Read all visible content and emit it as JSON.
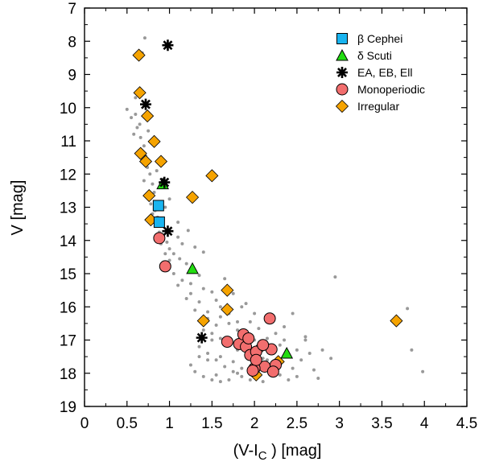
{
  "chart_data": {
    "type": "scatter",
    "xlabel": "(V-I",
    "xlabel_sub": "C",
    "xlabel_tail": " ) [mag]",
    "ylabel": "V [mag]",
    "xlim": [
      0,
      4.5
    ],
    "ylim": [
      7,
      19
    ],
    "y_inverted": true,
    "grid": false,
    "legend_position": "top-right",
    "xticks": [
      "0",
      "0.5",
      "1",
      "1.5",
      "2",
      "2.5",
      "3",
      "3.5",
      "4",
      "4.5"
    ],
    "yticks": [
      "7",
      "8",
      "9",
      "10",
      "11",
      "12",
      "13",
      "14",
      "15",
      "16",
      "17",
      "18",
      "19"
    ],
    "background": {
      "color": "#999999",
      "points": [
        [
          0.71,
          7.9
        ],
        [
          0.5,
          10.05
        ],
        [
          0.55,
          10.3
        ],
        [
          0.6,
          9.7
        ],
        [
          0.62,
          10.6
        ],
        [
          0.66,
          10.9
        ],
        [
          0.7,
          11.15
        ],
        [
          0.72,
          11.45
        ],
        [
          0.74,
          11.8
        ],
        [
          0.77,
          12.0
        ],
        [
          0.8,
          12.3
        ],
        [
          0.82,
          12.55
        ],
        [
          0.78,
          12.9
        ],
        [
          0.83,
          13.1
        ],
        [
          0.86,
          13.3
        ],
        [
          0.9,
          13.55
        ],
        [
          0.93,
          13.85
        ],
        [
          0.97,
          14.05
        ],
        [
          1.0,
          14.25
        ],
        [
          1.05,
          14.4
        ],
        [
          1.12,
          14.55
        ],
        [
          1.2,
          14.7
        ],
        [
          1.3,
          14.9
        ],
        [
          1.35,
          15.05
        ],
        [
          1.25,
          15.3
        ],
        [
          1.4,
          15.45
        ],
        [
          1.5,
          15.55
        ],
        [
          1.55,
          15.8
        ],
        [
          1.6,
          16.0
        ],
        [
          1.45,
          16.15
        ],
        [
          1.6,
          16.3
        ],
        [
          1.7,
          16.5
        ],
        [
          1.8,
          16.7
        ],
        [
          1.9,
          16.85
        ],
        [
          2.0,
          17.0
        ],
        [
          1.35,
          17.2
        ],
        [
          1.45,
          17.4
        ],
        [
          1.55,
          17.6
        ],
        [
          1.65,
          17.8
        ],
        [
          1.75,
          17.95
        ],
        [
          1.85,
          18.1
        ],
        [
          1.95,
          18.2
        ],
        [
          2.1,
          18.25
        ],
        [
          2.2,
          18.0
        ],
        [
          2.3,
          17.7
        ],
        [
          2.4,
          17.5
        ],
        [
          2.5,
          17.3
        ],
        [
          2.6,
          17.0
        ],
        [
          2.7,
          17.9
        ],
        [
          2.75,
          18.15
        ],
        [
          1.3,
          17.95
        ],
        [
          1.4,
          18.1
        ],
        [
          1.5,
          18.2
        ],
        [
          1.6,
          18.25
        ],
        [
          1.7,
          18.2
        ],
        [
          1.8,
          18.0
        ],
        [
          2.0,
          17.75
        ],
        [
          2.1,
          17.55
        ],
        [
          2.2,
          17.35
        ],
        [
          2.3,
          17.15
        ],
        [
          2.35,
          16.6
        ],
        [
          2.45,
          16.2
        ],
        [
          2.6,
          16.9
        ],
        [
          2.8,
          17.3
        ],
        [
          2.9,
          17.55
        ],
        [
          2.95,
          15.1
        ],
        [
          3.8,
          16.05
        ],
        [
          3.85,
          17.3
        ],
        [
          3.98,
          17.95
        ],
        [
          1.1,
          13.9
        ],
        [
          1.15,
          14.1
        ],
        [
          1.22,
          13.7
        ],
        [
          1.3,
          14.2
        ],
        [
          1.4,
          14.35
        ],
        [
          1.1,
          13.45
        ],
        [
          0.95,
          13.0
        ],
        [
          1.0,
          12.75
        ],
        [
          0.68,
          8.35
        ],
        [
          0.75,
          10.7
        ],
        [
          0.85,
          11.9
        ],
        [
          0.6,
          10.2
        ],
        [
          0.65,
          10.5
        ],
        [
          0.9,
          14.1
        ],
        [
          1.0,
          14.6
        ],
        [
          1.15,
          15.2
        ],
        [
          1.25,
          15.6
        ],
        [
          1.35,
          15.85
        ],
        [
          1.45,
          16.35
        ],
        [
          1.55,
          16.55
        ],
        [
          1.5,
          16.8
        ],
        [
          1.6,
          16.95
        ],
        [
          1.7,
          17.15
        ],
        [
          1.8,
          17.3
        ],
        [
          1.9,
          17.45
        ],
        [
          2.0,
          17.6
        ],
        [
          2.1,
          17.8
        ],
        [
          2.2,
          17.95
        ],
        [
          2.3,
          18.05
        ],
        [
          2.45,
          17.85
        ],
        [
          2.55,
          17.6
        ],
        [
          2.65,
          17.4
        ],
        [
          2.5,
          18.1
        ],
        [
          2.4,
          18.2
        ],
        [
          1.6,
          17.5
        ],
        [
          1.5,
          17.0
        ],
        [
          1.4,
          16.7
        ],
        [
          1.3,
          16.1
        ],
        [
          1.2,
          15.75
        ],
        [
          1.1,
          15.35
        ],
        [
          1.05,
          15.0
        ],
        [
          0.95,
          14.4
        ],
        [
          0.88,
          13.75
        ],
        [
          0.8,
          13.2
        ],
        [
          0.76,
          12.75
        ],
        [
          0.7,
          12.2
        ],
        [
          0.68,
          11.6
        ],
        [
          0.64,
          11.3
        ],
        [
          0.58,
          10.8
        ],
        [
          1.65,
          15.15
        ],
        [
          1.75,
          15.6
        ],
        [
          1.85,
          16.0
        ],
        [
          1.95,
          16.45
        ],
        [
          2.05,
          16.65
        ],
        [
          2.15,
          16.95
        ],
        [
          2.25,
          16.8
        ],
        [
          2.35,
          17.0
        ],
        [
          1.9,
          15.9
        ],
        [
          2.0,
          16.2
        ],
        [
          1.7,
          16.2
        ],
        [
          1.8,
          16.45
        ],
        [
          1.95,
          17.25
        ],
        [
          2.05,
          17.4
        ],
        [
          2.15,
          17.6
        ],
        [
          1.75,
          17.65
        ],
        [
          1.85,
          17.85
        ],
        [
          1.95,
          18.0
        ],
        [
          1.45,
          17.6
        ],
        [
          1.35,
          17.5
        ],
        [
          1.25,
          17.75
        ],
        [
          1.55,
          18.05
        ]
      ]
    },
    "series": [
      {
        "name": "β Cephei",
        "marker": "square",
        "color": "#19b4f0",
        "points": [
          [
            0.87,
            12.95
          ],
          [
            0.88,
            13.45
          ]
        ]
      },
      {
        "name": "δ Scuti",
        "marker": "triangle",
        "color": "#22dd11",
        "points": [
          [
            0.92,
            12.3
          ],
          [
            1.27,
            14.85
          ],
          [
            2.38,
            17.4
          ]
        ]
      },
      {
        "name": "EA, EB, Ell",
        "marker": "asterisk",
        "color": "#000000",
        "points": [
          [
            0.98,
            8.12
          ],
          [
            0.72,
            9.9
          ],
          [
            0.94,
            12.25
          ],
          [
            0.98,
            13.72
          ],
          [
            1.38,
            16.93
          ]
        ]
      },
      {
        "name": "Monoperiodic",
        "marker": "circle",
        "color": "#f26e6e",
        "points": [
          [
            0.88,
            13.93
          ],
          [
            0.95,
            14.78
          ],
          [
            1.68,
            17.05
          ],
          [
            1.82,
            17.12
          ],
          [
            1.9,
            17.2
          ],
          [
            1.87,
            16.83
          ],
          [
            1.93,
            16.95
          ],
          [
            1.95,
            17.45
          ],
          [
            2.02,
            17.35
          ],
          [
            2.12,
            17.8
          ],
          [
            2.0,
            17.85
          ],
          [
            2.2,
            17.28
          ],
          [
            2.25,
            17.75
          ],
          [
            2.22,
            17.95
          ],
          [
            2.02,
            17.6
          ],
          [
            1.98,
            17.92
          ],
          [
            2.1,
            17.15
          ],
          [
            2.18,
            16.35
          ]
        ]
      },
      {
        "name": "Irregular",
        "marker": "diamond",
        "color": "#f5a300",
        "points": [
          [
            0.64,
            8.42
          ],
          [
            0.65,
            9.55
          ],
          [
            0.74,
            10.25
          ],
          [
            0.82,
            11.02
          ],
          [
            0.66,
            11.38
          ],
          [
            0.72,
            11.62
          ],
          [
            0.9,
            11.62
          ],
          [
            1.5,
            12.05
          ],
          [
            0.76,
            12.65
          ],
          [
            1.27,
            12.7
          ],
          [
            0.78,
            13.38
          ],
          [
            1.4,
            16.42
          ],
          [
            1.68,
            15.5
          ],
          [
            1.68,
            16.08
          ],
          [
            3.67,
            16.42
          ],
          [
            2.08,
            17.2
          ],
          [
            2.02,
            18.05
          ],
          [
            2.28,
            17.65
          ]
        ]
      }
    ]
  }
}
